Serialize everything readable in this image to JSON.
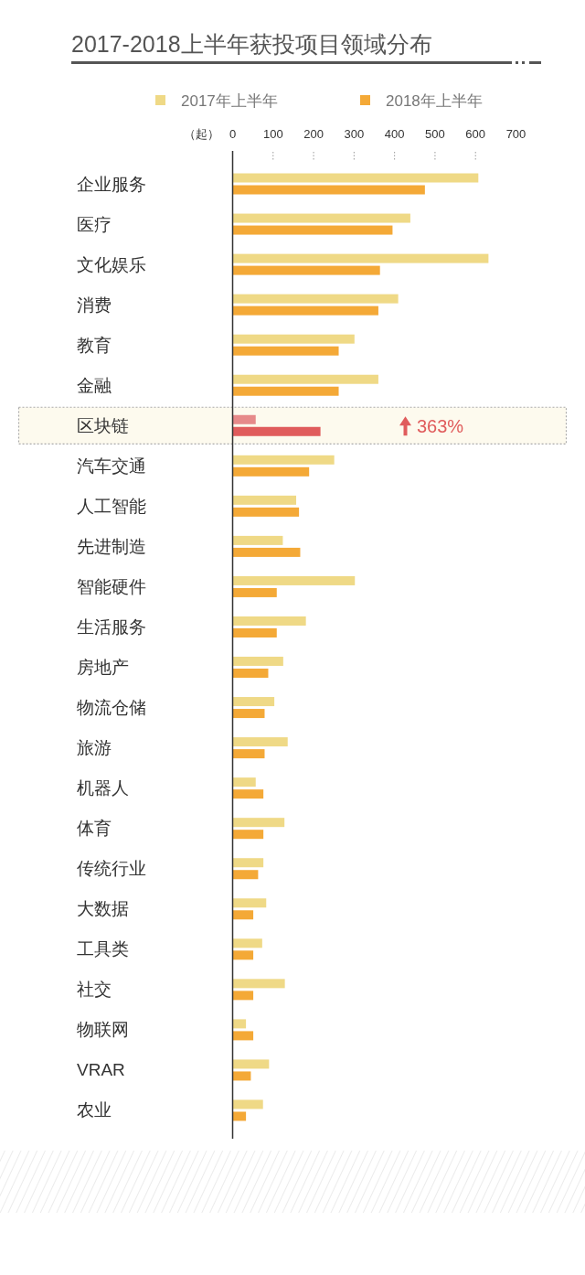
{
  "chart_data": {
    "type": "bar",
    "orientation": "horizontal",
    "title": "2017-2018上半年获投项目领域分布",
    "xlabel": "（起）",
    "categories": [
      "企业服务",
      "医疗",
      "文化娱乐",
      "消费",
      "教育",
      "金融",
      "区块链",
      "汽车交通",
      "人工智能",
      "先进制造",
      "智能硬件",
      "生活服务",
      "房地产",
      "物流仓储",
      "旅游",
      "机器人",
      "体育",
      "传统行业",
      "大数据",
      "工具类",
      "社交",
      "物联网",
      "VRAR",
      "农业"
    ],
    "series": [
      {
        "name": "2017年上半年",
        "color": "#efd986",
        "colors": [
          "#efd986",
          "#efd986",
          "#efd986",
          "#efd986",
          "#efd986",
          "#efd986",
          "#e68a8a",
          "#efd986",
          "#efd986",
          "#efd986",
          "#efd986",
          "#efd986",
          "#efd986",
          "#efd986",
          "#efd986",
          "#efd986",
          "#efd986",
          "#efd986",
          "#efd986",
          "#efd986",
          "#efd986",
          "#efd986",
          "#efd986",
          "#efd986"
        ],
        "values": [
          607,
          439,
          632,
          409,
          301,
          360,
          57,
          251,
          157,
          124,
          302,
          181,
          125,
          103,
          136,
          57,
          128,
          76,
          83,
          73,
          129,
          33,
          90,
          75
        ]
      },
      {
        "name": "2018年上半年",
        "color": "#f4a937",
        "colors": [
          "#f4a937",
          "#f4a937",
          "#f4a937",
          "#f4a937",
          "#f4a937",
          "#f4a937",
          "#e05c5c",
          "#f4a937",
          "#f4a937",
          "#f4a937",
          "#f4a937",
          "#f4a937",
          "#f4a937",
          "#f4a937",
          "#f4a937",
          "#f4a937",
          "#f4a937",
          "#f4a937",
          "#f4a937",
          "#f4a937",
          "#f4a937",
          "#f4a937",
          "#f4a937",
          "#f4a937"
        ],
        "values": [
          475,
          395,
          364,
          360,
          262,
          262,
          217,
          189,
          164,
          167,
          109,
          109,
          88,
          79,
          79,
          76,
          76,
          63,
          51,
          51,
          51,
          51,
          45,
          33
        ]
      }
    ],
    "xlim": [
      0,
      700
    ],
    "xticks": [
      0,
      100,
      200,
      300,
      400,
      500,
      600,
      700
    ],
    "legend": "top",
    "bands": [
      {
        "axis": "y",
        "from": "区块链",
        "to": "区块链",
        "color": "#fdfaee"
      }
    ],
    "annotations": [
      "363%"
    ]
  }
}
